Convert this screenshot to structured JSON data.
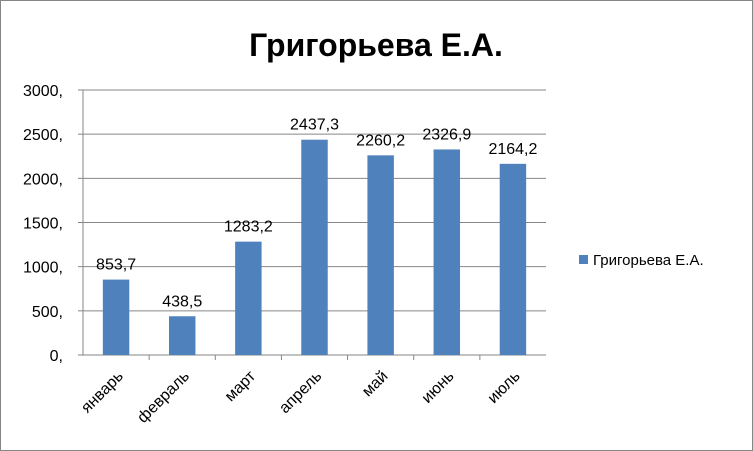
{
  "chart_data": {
    "type": "bar",
    "title": "Григорьева Е.А.",
    "xlabel": "",
    "ylabel": "",
    "categories": [
      "январь",
      "февраль",
      "март",
      "апрель",
      "май",
      "июнь",
      "июль"
    ],
    "series": [
      {
        "name": "Григорьева Е.А.",
        "values": [
          853.7,
          438.5,
          1283.2,
          2437.3,
          2260.2,
          2326.9,
          2164.2
        ],
        "labels": [
          "853,7",
          "438,5",
          "1283,2",
          "2437,3",
          "2260,2",
          "2326,9",
          "2164,2"
        ],
        "color": "#4f81bd"
      }
    ],
    "ylim": [
      0,
      3000
    ],
    "yticks": [
      0,
      500,
      1000,
      1500,
      2000,
      2500,
      3000
    ],
    "ytick_labels": [
      "0,",
      "500,",
      "1000,",
      "1500,",
      "2000,",
      "2500,",
      "3000,"
    ],
    "grid": true,
    "legend": "right",
    "gridline_color": "#868686"
  }
}
